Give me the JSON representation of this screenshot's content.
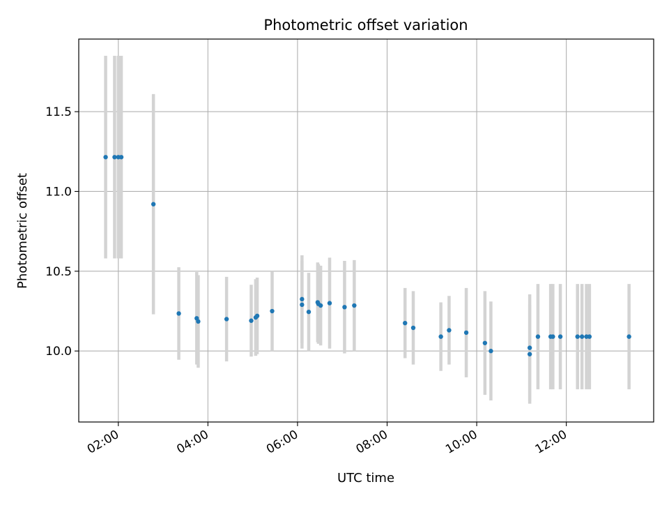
{
  "chart_data": {
    "type": "scatter",
    "title": "Photometric offset variation",
    "xlabel": "UTC time",
    "ylabel": "Photometric offset",
    "x_axis": "time",
    "xlim": [
      "01:07",
      "13:57"
    ],
    "ylim": [
      9.555,
      11.955
    ],
    "x_ticks": [
      "02:00",
      "04:00",
      "06:00",
      "08:00",
      "10:00",
      "12:00"
    ],
    "y_ticks": [
      10.0,
      10.5,
      11.0,
      11.5
    ],
    "grid": true,
    "colors": {
      "point": "#1f77b4",
      "errorbar": "#d3d3d3",
      "grid": "#b0b0b0"
    },
    "series": [
      {
        "points": [
          {
            "x": "01:43",
            "y": 11.215,
            "err": 0.635
          },
          {
            "x": "01:55",
            "y": 11.215,
            "err": 0.635
          },
          {
            "x": "02:00",
            "y": 11.215,
            "err": 0.635
          },
          {
            "x": "02:04",
            "y": 11.215,
            "err": 0.635
          },
          {
            "x": "02:47",
            "y": 10.92,
            "err": 0.69
          },
          {
            "x": "03:21",
            "y": 10.235,
            "err": 0.29
          },
          {
            "x": "03:45",
            "y": 10.205,
            "err": 0.29
          },
          {
            "x": "03:47",
            "y": 10.185,
            "err": 0.29
          },
          {
            "x": "04:25",
            "y": 10.2,
            "err": 0.265
          },
          {
            "x": "04:58",
            "y": 10.19,
            "err": 0.225
          },
          {
            "x": "05:04",
            "y": 10.21,
            "err": 0.24
          },
          {
            "x": "05:06",
            "y": 10.22,
            "err": 0.24
          },
          {
            "x": "05:26",
            "y": 10.25,
            "err": 0.25
          },
          {
            "x": "06:06",
            "y": 10.325,
            "err": 0.275
          },
          {
            "x": "06:06",
            "y": 10.29,
            "err": 0.275
          },
          {
            "x": "06:15",
            "y": 10.245,
            "err": 0.245
          },
          {
            "x": "06:27",
            "y": 10.305,
            "err": 0.25
          },
          {
            "x": "06:28",
            "y": 10.295,
            "err": 0.25
          },
          {
            "x": "06:31",
            "y": 10.285,
            "err": 0.25
          },
          {
            "x": "06:43",
            "y": 10.3,
            "err": 0.285
          },
          {
            "x": "07:03",
            "y": 10.275,
            "err": 0.29
          },
          {
            "x": "07:16",
            "y": 10.285,
            "err": 0.285
          },
          {
            "x": "08:24",
            "y": 10.175,
            "err": 0.22
          },
          {
            "x": "08:35",
            "y": 10.145,
            "err": 0.23
          },
          {
            "x": "09:12",
            "y": 10.09,
            "err": 0.215
          },
          {
            "x": "09:23",
            "y": 10.13,
            "err": 0.215
          },
          {
            "x": "09:46",
            "y": 10.115,
            "err": 0.28
          },
          {
            "x": "10:11",
            "y": 10.05,
            "err": 0.325
          },
          {
            "x": "10:19",
            "y": 10.0,
            "err": 0.31
          },
          {
            "x": "11:11",
            "y": 10.02,
            "err": 0.335
          },
          {
            "x": "11:11",
            "y": 9.98,
            "err": 0.31
          },
          {
            "x": "11:22",
            "y": 10.09,
            "err": 0.33
          },
          {
            "x": "11:39",
            "y": 10.09,
            "err": 0.33
          },
          {
            "x": "11:42",
            "y": 10.09,
            "err": 0.33
          },
          {
            "x": "11:52",
            "y": 10.09,
            "err": 0.33
          },
          {
            "x": "12:15",
            "y": 10.09,
            "err": 0.33
          },
          {
            "x": "12:21",
            "y": 10.09,
            "err": 0.33
          },
          {
            "x": "12:27",
            "y": 10.09,
            "err": 0.33
          },
          {
            "x": "12:31",
            "y": 10.09,
            "err": 0.33
          },
          {
            "x": "13:24",
            "y": 10.09,
            "err": 0.33
          }
        ]
      }
    ]
  }
}
